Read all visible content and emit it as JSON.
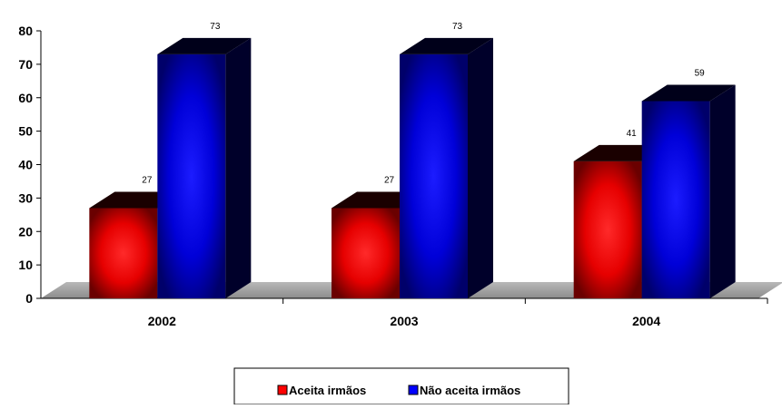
{
  "chart_data": {
    "type": "bar",
    "categories": [
      "2002",
      "2003",
      "2004"
    ],
    "series": [
      {
        "name": "Aceita irmãos",
        "values": [
          27,
          27,
          41
        ],
        "color": "#ff0000"
      },
      {
        "name": "Não aceita irmãos",
        "values": [
          73,
          73,
          59
        ],
        "color": "#0000ff"
      }
    ],
    "yticks": [
      "0",
      "10",
      "20",
      "30",
      "40",
      "50",
      "60",
      "70",
      "80"
    ],
    "ylim": [
      0,
      80
    ],
    "data_labels": true,
    "style": "3d-columns",
    "grid": false,
    "legend_position": "bottom"
  }
}
